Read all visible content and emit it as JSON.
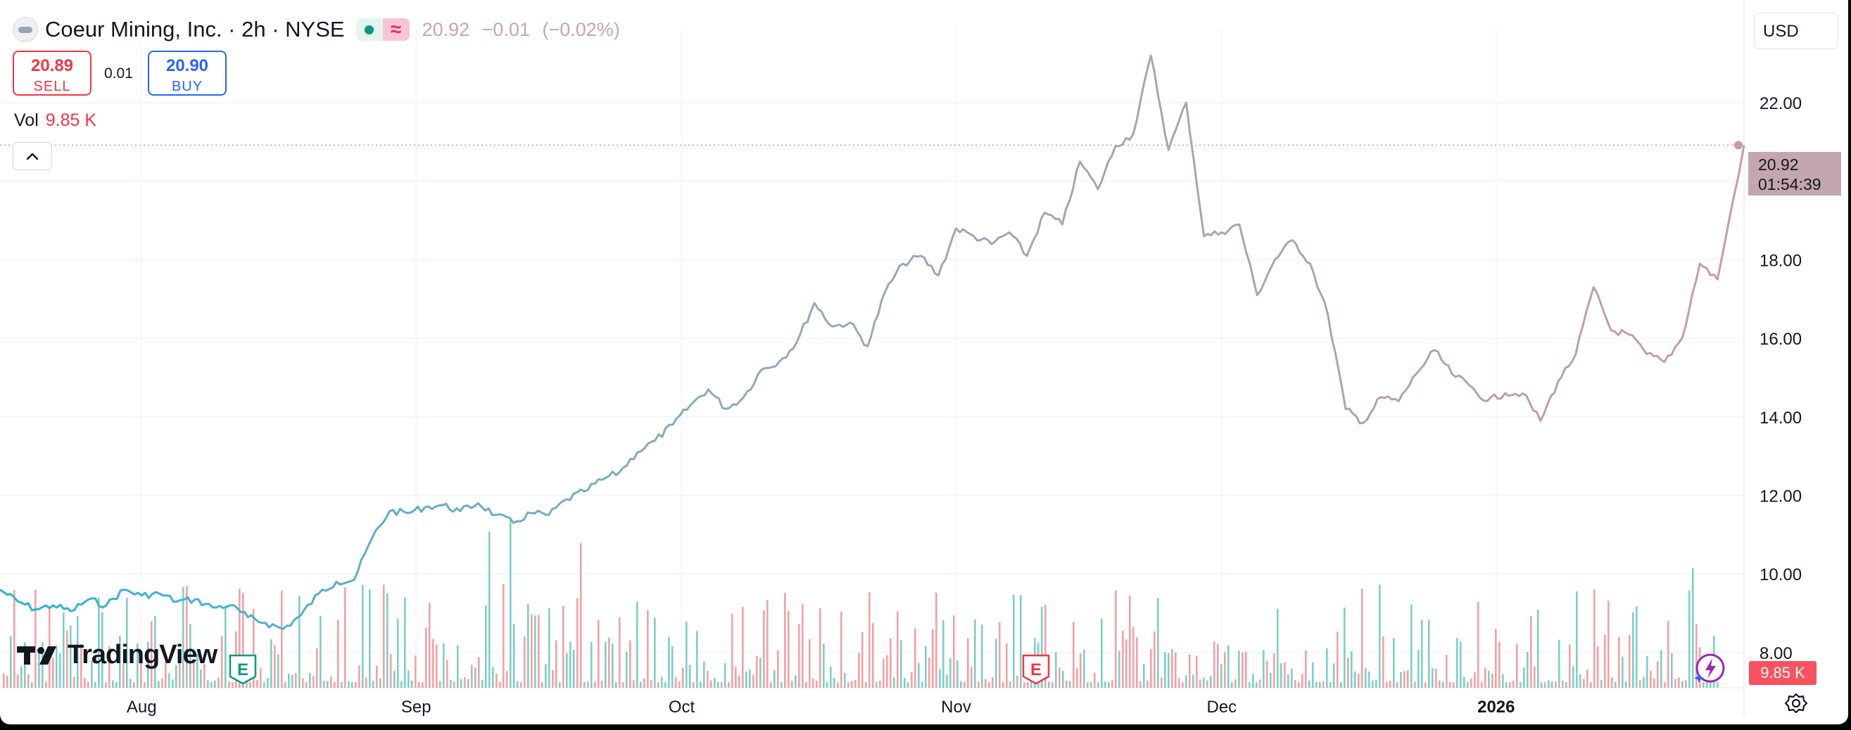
{
  "header": {
    "title": "Coeur Mining, Inc. · 2h · NYSE",
    "market_status_icon": "market-open-dot",
    "delayed_icon": "approx-icon",
    "ohlc": {
      "last": "20.92",
      "change": "−0.01",
      "change_pct": "(−0.02%)"
    }
  },
  "trade": {
    "sell_price": "20.89",
    "sell_label": "SELL",
    "spread": "0.01",
    "buy_price": "20.90",
    "buy_label": "BUY"
  },
  "volume_legend": {
    "label": "Vol",
    "value": "9.85 K"
  },
  "currency": "USD",
  "last_price_label": {
    "price": "20.92",
    "countdown": "01:54:39"
  },
  "volume_axis_label": "9.85 K",
  "branding": {
    "logo_text": "TradingView"
  },
  "colors": {
    "line_start": "#2ab3d6",
    "line_mid": "#96a8bb",
    "line_end": "#c79ba6",
    "volume_up": "#7dcfc6",
    "volume_down": "#f4a0a4",
    "earnings_green": "#089981",
    "earnings_red": "#f23645",
    "grid": "#f0f3fa"
  },
  "chart_data": {
    "type": "line",
    "y_axis": {
      "ticks": [
        "8.00",
        "10.00",
        "12.00",
        "14.00",
        "16.00",
        "18.00",
        "20.00",
        "22.00"
      ],
      "ylim": [
        7.1,
        23.9
      ]
    },
    "x_axis": {
      "ticks": [
        {
          "label": "Aug",
          "date": "2025-08-01"
        },
        {
          "label": "Sep",
          "date": "2025-09-01"
        },
        {
          "label": "Oct",
          "date": "2025-10-01"
        },
        {
          "label": "Nov",
          "date": "2025-11-01"
        },
        {
          "label": "Dec",
          "date": "2025-12-01"
        },
        {
          "label": "2026",
          "date": "2026-01-01",
          "bold": true
        }
      ],
      "xlim": [
        "2025-07-16",
        "2026-01-29"
      ]
    },
    "series": [
      {
        "points": [
          [
            "2025-07-16",
            9.6
          ],
          [
            "2025-07-18",
            9.3
          ],
          [
            "2025-07-20",
            9.1
          ],
          [
            "2025-07-22",
            9.2
          ],
          [
            "2025-07-24",
            9.05
          ],
          [
            "2025-07-26",
            9.35
          ],
          [
            "2025-07-28",
            9.2
          ],
          [
            "2025-07-30",
            9.6
          ],
          [
            "2025-08-01",
            9.45
          ],
          [
            "2025-08-03",
            9.5
          ],
          [
            "2025-08-05",
            9.3
          ],
          [
            "2025-08-07",
            9.35
          ],
          [
            "2025-08-09",
            9.15
          ],
          [
            "2025-08-11",
            9.2
          ],
          [
            "2025-08-13",
            8.9
          ],
          [
            "2025-08-15",
            8.75
          ],
          [
            "2025-08-17",
            8.6
          ],
          [
            "2025-08-19",
            8.95
          ],
          [
            "2025-08-21",
            9.5
          ],
          [
            "2025-08-23",
            9.8
          ],
          [
            "2025-08-25",
            9.85
          ],
          [
            "2025-08-27",
            10.9
          ],
          [
            "2025-08-29",
            11.6
          ],
          [
            "2025-08-31",
            11.55
          ],
          [
            "2025-09-02",
            11.7
          ],
          [
            "2025-09-04",
            11.75
          ],
          [
            "2025-09-06",
            11.6
          ],
          [
            "2025-09-08",
            11.8
          ],
          [
            "2025-09-10",
            11.5
          ],
          [
            "2025-09-12",
            11.3
          ],
          [
            "2025-09-14",
            11.55
          ],
          [
            "2025-09-16",
            11.5
          ],
          [
            "2025-09-18",
            11.9
          ],
          [
            "2025-09-20",
            12.1
          ],
          [
            "2025-09-22",
            12.4
          ],
          [
            "2025-09-24",
            12.6
          ],
          [
            "2025-09-26",
            13.1
          ],
          [
            "2025-09-28",
            13.4
          ],
          [
            "2025-09-30",
            13.8
          ],
          [
            "2025-10-02",
            14.3
          ],
          [
            "2025-10-04",
            14.7
          ],
          [
            "2025-10-06",
            14.2
          ],
          [
            "2025-10-08",
            14.5
          ],
          [
            "2025-10-10",
            15.2
          ],
          [
            "2025-10-12",
            15.4
          ],
          [
            "2025-10-14",
            15.9
          ],
          [
            "2025-10-16",
            16.9
          ],
          [
            "2025-10-18",
            16.3
          ],
          [
            "2025-10-20",
            16.4
          ],
          [
            "2025-10-22",
            15.8
          ],
          [
            "2025-10-24",
            17.2
          ],
          [
            "2025-10-26",
            17.9
          ],
          [
            "2025-10-28",
            18.1
          ],
          [
            "2025-10-30",
            17.6
          ],
          [
            "2025-11-01",
            18.8
          ],
          [
            "2025-11-03",
            18.6
          ],
          [
            "2025-11-05",
            18.4
          ],
          [
            "2025-11-07",
            18.7
          ],
          [
            "2025-11-09",
            18.1
          ],
          [
            "2025-11-11",
            19.2
          ],
          [
            "2025-11-13",
            18.9
          ],
          [
            "2025-11-15",
            20.5
          ],
          [
            "2025-11-17",
            19.8
          ],
          [
            "2025-11-19",
            20.9
          ],
          [
            "2025-11-21",
            21.2
          ],
          [
            "2025-11-23",
            23.2
          ],
          [
            "2025-11-25",
            20.8
          ],
          [
            "2025-11-27",
            22.0
          ],
          [
            "2025-11-29",
            18.6
          ],
          [
            "2025-12-01",
            18.7
          ],
          [
            "2025-12-03",
            18.9
          ],
          [
            "2025-12-05",
            17.1
          ],
          [
            "2025-12-07",
            18.0
          ],
          [
            "2025-12-09",
            18.5
          ],
          [
            "2025-12-11",
            17.9
          ],
          [
            "2025-12-13",
            16.6
          ],
          [
            "2025-12-15",
            14.2
          ],
          [
            "2025-12-17",
            13.85
          ],
          [
            "2025-12-19",
            14.5
          ],
          [
            "2025-12-21",
            14.4
          ],
          [
            "2025-12-23",
            15.1
          ],
          [
            "2025-12-25",
            15.7
          ],
          [
            "2025-12-27",
            15.1
          ],
          [
            "2025-12-29",
            14.8
          ],
          [
            "2025-12-31",
            14.4
          ],
          [
            "2026-01-02",
            14.6
          ],
          [
            "2026-01-04",
            14.6
          ],
          [
            "2026-01-06",
            13.9
          ],
          [
            "2026-01-08",
            14.9
          ],
          [
            "2026-01-10",
            15.6
          ],
          [
            "2026-01-12",
            17.3
          ],
          [
            "2026-01-14",
            16.2
          ],
          [
            "2026-01-16",
            16.1
          ],
          [
            "2026-01-18",
            15.6
          ],
          [
            "2026-01-20",
            15.4
          ],
          [
            "2026-01-22",
            16.0
          ],
          [
            "2026-01-24",
            17.9
          ],
          [
            "2026-01-26",
            17.5
          ],
          [
            "2026-01-29",
            20.92
          ]
        ]
      }
    ]
  }
}
